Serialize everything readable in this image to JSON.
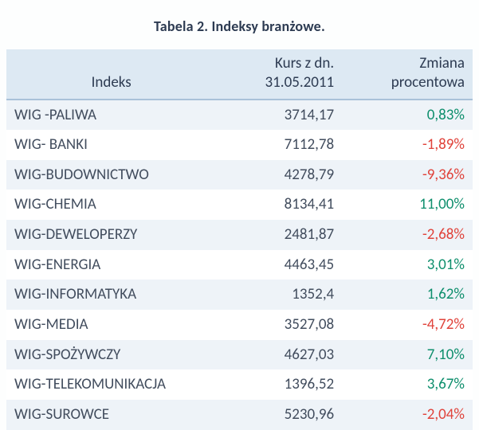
{
  "title": "Tabela 2. Indeksy branżowe.",
  "table": {
    "type": "table",
    "background_color": "#fdfefe",
    "header_background": "#dde9f3",
    "header_border_color": "#a9c1d9",
    "stripe_odd_background": "#eef3f8",
    "stripe_even_background": "#ffffff",
    "text_color": "#424d5e",
    "positive_color": "#0f8f6d",
    "negative_color": "#e0433b",
    "font_size_pt": 14,
    "column_widths_pct": [
      45,
      27,
      28
    ],
    "columns": [
      {
        "key": "name",
        "label_line1": "",
        "label_line2": "Indeks",
        "align": "center"
      },
      {
        "key": "price",
        "label_line1": "Kurs z dn.",
        "label_line2": "31.05.2011",
        "align": "right"
      },
      {
        "key": "change",
        "label_line1": "Zmiana",
        "label_line2": "procentowa",
        "align": "right"
      }
    ],
    "rows": [
      {
        "name": "WIG -PALIWA",
        "price": "3714,17",
        "change": "0,83%",
        "change_sign": "pos"
      },
      {
        "name": "WIG- BANKI",
        "price": "7112,78",
        "change": "-1,89%",
        "change_sign": "neg"
      },
      {
        "name": "WIG-BUDOWNICTWO",
        "price": "4278,79",
        "change": "-9,36%",
        "change_sign": "neg"
      },
      {
        "name": "WIG-CHEMIA",
        "price": "8134,41",
        "change": "11,00%",
        "change_sign": "pos"
      },
      {
        "name": "WIG-DEWELOPERZY",
        "price": "2481,87",
        "change": "-2,68%",
        "change_sign": "neg"
      },
      {
        "name": "WIG-ENERGIA",
        "price": "4463,45",
        "change": "3,01%",
        "change_sign": "pos"
      },
      {
        "name": "WIG-INFORMATYKA",
        "price": "1352,4",
        "change": "1,62%",
        "change_sign": "pos"
      },
      {
        "name": "WIG-MEDIA",
        "price": "3527,08",
        "change": "-4,72%",
        "change_sign": "neg"
      },
      {
        "name": "WIG-SPOŻYWCZY",
        "price": "4627,03",
        "change": "7,10%",
        "change_sign": "pos"
      },
      {
        "name": "WIG-TELEKOMUNIKACJA",
        "price": "1396,52",
        "change": "3,67%",
        "change_sign": "pos"
      },
      {
        "name": "WIG-SUROWCE",
        "price": "5230,96",
        "change": "-2,04%",
        "change_sign": "neg"
      }
    ]
  }
}
